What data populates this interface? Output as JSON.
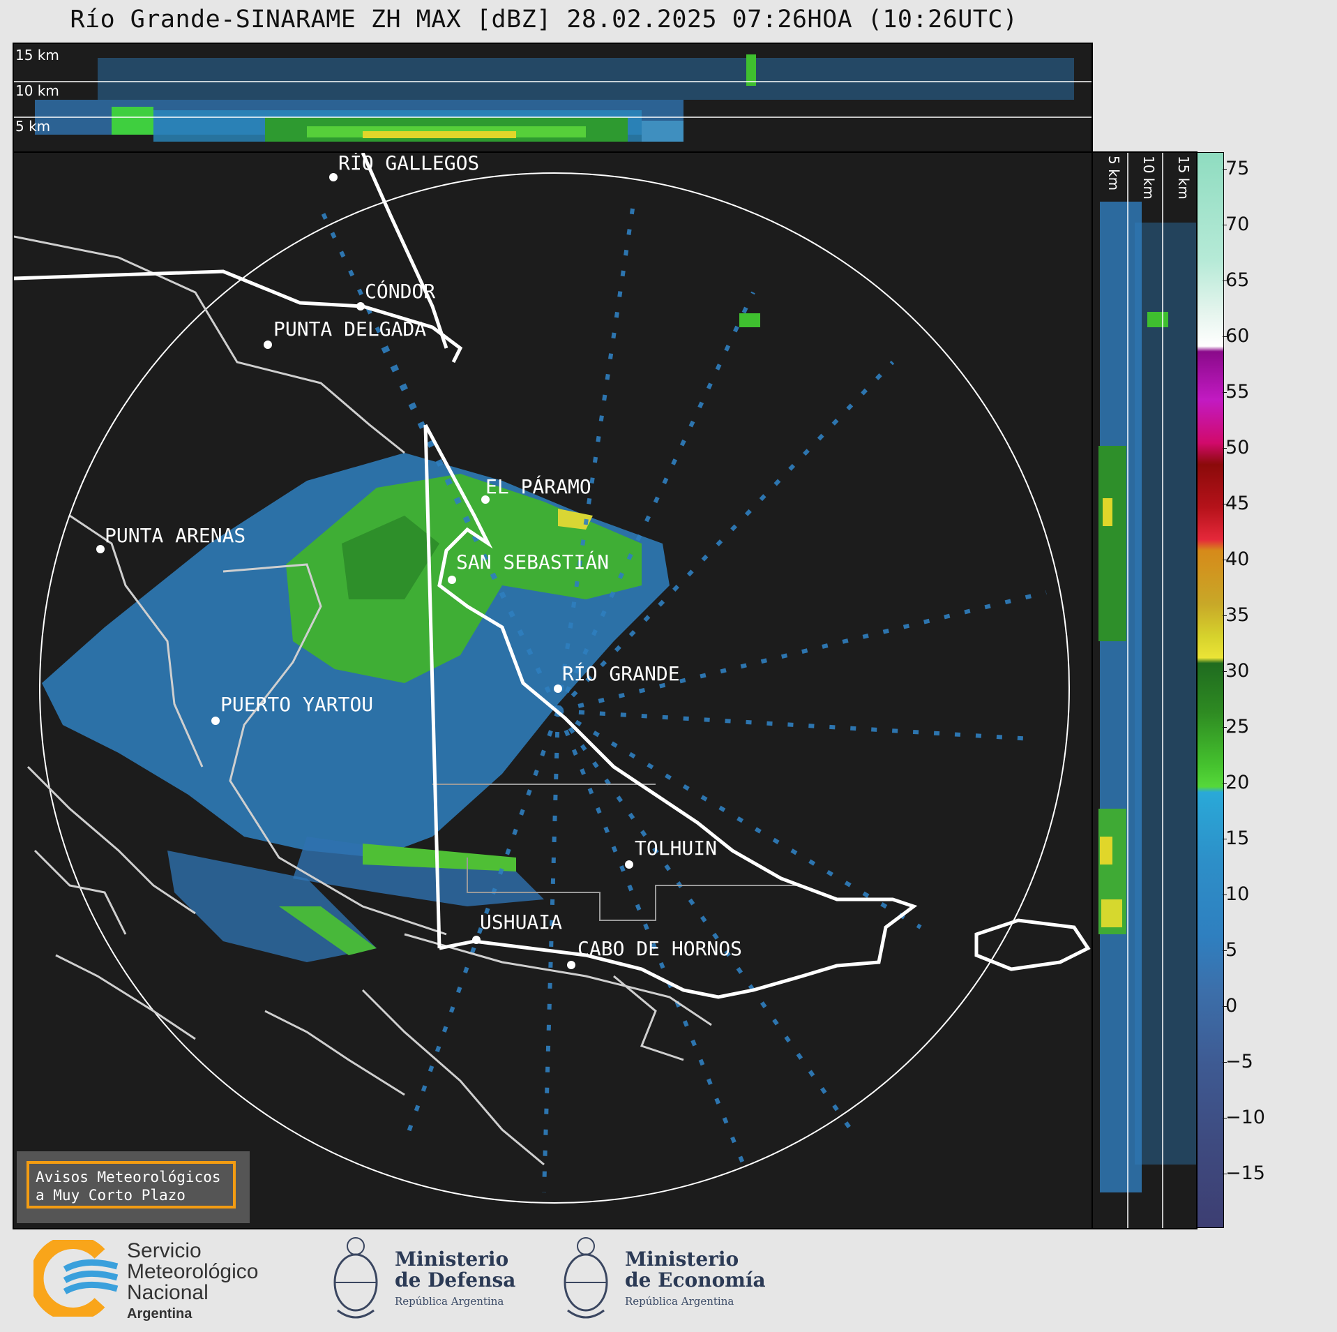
{
  "title": "Río Grande-SINARAME ZH MAX [dBZ] 28.02.2025 07:26HOA (10:26UTC)",
  "top_panel": {
    "altitude_labels": [
      "15 km",
      "10 km",
      "5 km"
    ]
  },
  "side_panel": {
    "altitude_labels": [
      "5 km",
      "10 km",
      "15 km"
    ]
  },
  "colorbar": {
    "unit": "dBZ",
    "ticks": [
      "75",
      "70",
      "65",
      "60",
      "55",
      "50",
      "45",
      "40",
      "35",
      "30",
      "25",
      "20",
      "15",
      "10",
      "5",
      "0",
      "−5",
      "−10",
      "−15"
    ],
    "range": [
      -20,
      77
    ]
  },
  "places": [
    {
      "name": "RÍO GALLEGOS"
    },
    {
      "name": "CÓNDOR"
    },
    {
      "name": "PUNTA DELGADA"
    },
    {
      "name": "EL PÁRAMO"
    },
    {
      "name": "PUNTA ARENAS"
    },
    {
      "name": "SAN SEBASTIÁN"
    },
    {
      "name": "RÍO GRANDE"
    },
    {
      "name": "PUERTO YARTOU"
    },
    {
      "name": "TOLHUIN"
    },
    {
      "name": "USHUAIA"
    },
    {
      "name": "CABO DE HORNOS"
    }
  ],
  "notice": {
    "line1": "Avisos Meteorológicos",
    "line2": "a Muy Corto Plazo"
  },
  "logos": {
    "smn": {
      "line1": "Servicio",
      "line2": "Meteorológico",
      "line3": "Nacional",
      "line4": "Argentina"
    },
    "defensa": {
      "line1": "Ministerio",
      "line2": "de Defensa",
      "line3": "República Argentina"
    },
    "economia": {
      "line1": "Ministerio",
      "line2": "de Economía",
      "line3": "República Argentina"
    }
  },
  "colors": {
    "background": "#1c1c1c",
    "echo_blue": "#2f7fbf",
    "echo_green": "#3fbf2f",
    "echo_yellow": "#e0d62a",
    "ring": "#ffffff",
    "border_accent": "#f39c12"
  }
}
